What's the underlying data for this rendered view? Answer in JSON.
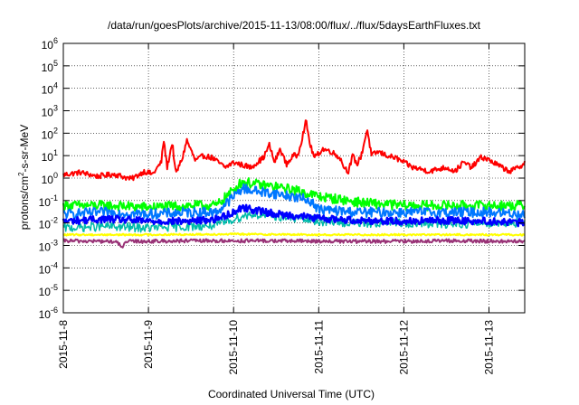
{
  "chart_data": {
    "type": "line",
    "title": "/data/run/goesPlots/archive/2015-11-13/08:00/flux/../flux/5daysEarthFluxes.txt",
    "xlabel": "Coordinated Universal Time (UTC)",
    "ylabel": {
      "base": "protons/cm",
      "sup": "2",
      "rest": "-s-sr-MeV"
    },
    "x_range_days": [
      0,
      5.42
    ],
    "x_ticks": [
      {
        "day": 0,
        "label": "2015-11-8"
      },
      {
        "day": 1,
        "label": "2015-11-9"
      },
      {
        "day": 2,
        "label": "2015-11-10"
      },
      {
        "day": 3,
        "label": "2015-11-11"
      },
      {
        "day": 4,
        "label": "2015-11-12"
      },
      {
        "day": 5,
        "label": "2015-11-13"
      }
    ],
    "y_scale": "log",
    "y_exponent_range": [
      -6,
      6
    ],
    "y_ticks": [
      {
        "base": "10",
        "exp": "6",
        "value": 1000000.0
      },
      {
        "base": "10",
        "exp": "5",
        "value": 100000.0
      },
      {
        "base": "10",
        "exp": "4",
        "value": 10000.0
      },
      {
        "base": "10",
        "exp": "3",
        "value": 1000.0
      },
      {
        "base": "10",
        "exp": "2",
        "value": 100.0
      },
      {
        "base": "10",
        "exp": "1",
        "value": 10.0
      },
      {
        "base": "10",
        "exp": "0",
        "value": 1.0
      },
      {
        "base": "10",
        "exp": "-1",
        "value": 0.1
      },
      {
        "base": "10",
        "exp": "-2",
        "value": 0.01
      },
      {
        "base": "10",
        "exp": "-3",
        "value": 0.001
      },
      {
        "base": "10",
        "exp": "-4",
        "value": 0.0001
      },
      {
        "base": "10",
        "exp": "-5",
        "value": 1e-05
      },
      {
        "base": "10",
        "exp": "-6",
        "value": 1e-06
      }
    ],
    "grid": true,
    "series": [
      {
        "color": "#ff0000",
        "width": 2,
        "jitter": 0.12,
        "points": [
          [
            0,
            1.4
          ],
          [
            0.2,
            1.8
          ],
          [
            0.4,
            1.2
          ],
          [
            0.6,
            1.5
          ],
          [
            0.8,
            0.9
          ],
          [
            0.95,
            2
          ],
          [
            1.05,
            1.5
          ],
          [
            1.15,
            5
          ],
          [
            1.18,
            50
          ],
          [
            1.22,
            3
          ],
          [
            1.28,
            40
          ],
          [
            1.32,
            1.5
          ],
          [
            1.4,
            8
          ],
          [
            1.45,
            50
          ],
          [
            1.55,
            6
          ],
          [
            1.65,
            10
          ],
          [
            1.75,
            8
          ],
          [
            1.9,
            3
          ],
          [
            2.0,
            5
          ],
          [
            2.2,
            3
          ],
          [
            2.35,
            8
          ],
          [
            2.42,
            30
          ],
          [
            2.48,
            5
          ],
          [
            2.55,
            20
          ],
          [
            2.62,
            4
          ],
          [
            2.7,
            10
          ],
          [
            2.75,
            10
          ],
          [
            2.8,
            50
          ],
          [
            2.85,
            350
          ],
          [
            2.9,
            30
          ],
          [
            2.95,
            8
          ],
          [
            3.05,
            20
          ],
          [
            3.15,
            15
          ],
          [
            3.25,
            8
          ],
          [
            3.3,
            3
          ],
          [
            3.35,
            2
          ],
          [
            3.4,
            10
          ],
          [
            3.45,
            4
          ],
          [
            3.5,
            10
          ],
          [
            3.57,
            150
          ],
          [
            3.62,
            10
          ],
          [
            3.7,
            15
          ],
          [
            3.8,
            10
          ],
          [
            3.9,
            8
          ],
          [
            4.0,
            5
          ],
          [
            4.1,
            3
          ],
          [
            4.2,
            2.5
          ],
          [
            4.3,
            2
          ],
          [
            4.4,
            2.5
          ],
          [
            4.5,
            3
          ],
          [
            4.6,
            2
          ],
          [
            4.7,
            5
          ],
          [
            4.8,
            3
          ],
          [
            4.9,
            8
          ],
          [
            4.95,
            8
          ],
          [
            5.05,
            5
          ],
          [
            5.15,
            3
          ],
          [
            5.25,
            2
          ],
          [
            5.35,
            3
          ],
          [
            5.42,
            5
          ]
        ]
      },
      {
        "color": "#00ff00",
        "width": 2,
        "jitter": 0.22,
        "points": [
          [
            0,
            0.06
          ],
          [
            0.5,
            0.06
          ],
          [
            1.0,
            0.05
          ],
          [
            1.5,
            0.06
          ],
          [
            1.8,
            0.06
          ],
          [
            2.0,
            0.3
          ],
          [
            2.1,
            0.7
          ],
          [
            2.3,
            0.5
          ],
          [
            2.5,
            0.4
          ],
          [
            2.7,
            0.3
          ],
          [
            2.9,
            0.2
          ],
          [
            3.0,
            0.15
          ],
          [
            3.2,
            0.12
          ],
          [
            3.5,
            0.08
          ],
          [
            4.0,
            0.06
          ],
          [
            4.5,
            0.06
          ],
          [
            5.0,
            0.06
          ],
          [
            5.42,
            0.06
          ]
        ]
      },
      {
        "color": "#0077ff",
        "width": 2,
        "jitter": 0.22,
        "points": [
          [
            0,
            0.025
          ],
          [
            0.5,
            0.03
          ],
          [
            1.0,
            0.025
          ],
          [
            1.5,
            0.03
          ],
          [
            1.8,
            0.03
          ],
          [
            2.0,
            0.15
          ],
          [
            2.1,
            0.35
          ],
          [
            2.3,
            0.25
          ],
          [
            2.5,
            0.2
          ],
          [
            2.7,
            0.15
          ],
          [
            2.9,
            0.1
          ],
          [
            3.0,
            0.04
          ],
          [
            3.2,
            0.035
          ],
          [
            3.5,
            0.03
          ],
          [
            4.0,
            0.03
          ],
          [
            4.5,
            0.03
          ],
          [
            5.0,
            0.03
          ],
          [
            5.42,
            0.025
          ]
        ]
      },
      {
        "color": "#00bbaa",
        "width": 1.5,
        "jitter": 0.2,
        "points": [
          [
            0,
            0.006
          ],
          [
            0.5,
            0.007
          ],
          [
            1.0,
            0.006
          ],
          [
            1.5,
            0.007
          ],
          [
            1.8,
            0.008
          ],
          [
            2.0,
            0.015
          ],
          [
            2.2,
            0.025
          ],
          [
            2.5,
            0.02
          ],
          [
            2.8,
            0.015
          ],
          [
            3.0,
            0.012
          ],
          [
            3.5,
            0.01
          ],
          [
            4.0,
            0.01
          ],
          [
            4.5,
            0.009
          ],
          [
            5.0,
            0.01
          ],
          [
            5.42,
            0.01
          ]
        ]
      },
      {
        "color": "#0000ff",
        "width": 2.5,
        "jitter": 0.16,
        "points": [
          [
            0,
            0.012
          ],
          [
            0.5,
            0.015
          ],
          [
            1.0,
            0.012
          ],
          [
            1.5,
            0.012
          ],
          [
            1.8,
            0.015
          ],
          [
            2.0,
            0.03
          ],
          [
            2.1,
            0.05
          ],
          [
            2.3,
            0.035
          ],
          [
            2.5,
            0.025
          ],
          [
            2.8,
            0.02
          ],
          [
            3.0,
            0.016
          ],
          [
            3.5,
            0.013
          ],
          [
            4.0,
            0.012
          ],
          [
            4.5,
            0.013
          ],
          [
            5.0,
            0.012
          ],
          [
            5.42,
            0.01
          ]
        ]
      },
      {
        "color": "#ffff00",
        "width": 2,
        "jitter": 0.04,
        "points": [
          [
            0,
            0.003
          ],
          [
            1.0,
            0.003
          ],
          [
            2.0,
            0.0032
          ],
          [
            3.0,
            0.003
          ],
          [
            4.0,
            0.003
          ],
          [
            5.42,
            0.003
          ]
        ]
      },
      {
        "color": "#993377",
        "width": 2,
        "jitter": 0.08,
        "points": [
          [
            0,
            0.0016
          ],
          [
            0.6,
            0.0015
          ],
          [
            0.7,
            0.0009
          ],
          [
            0.75,
            0.0015
          ],
          [
            1.5,
            0.0016
          ],
          [
            2.5,
            0.0016
          ],
          [
            3.5,
            0.0015
          ],
          [
            4.5,
            0.0016
          ],
          [
            5.42,
            0.0015
          ]
        ]
      }
    ]
  }
}
